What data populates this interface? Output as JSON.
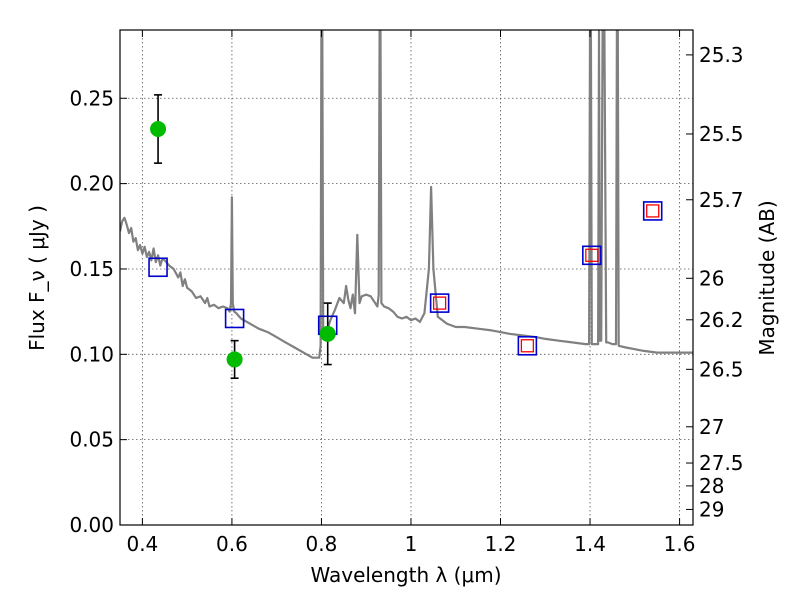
{
  "chart_data": {
    "type": "line",
    "xlabel": "Wavelength  λ (μm)",
    "ylabel_left": "Flux  F_ν  ( μJy )",
    "ylabel_right": "Magnitude (AB)",
    "xlim": [
      0.35,
      1.63
    ],
    "ylim": [
      0.0,
      0.29
    ],
    "grid": true,
    "x_ticks": [
      {
        "value": 0.4,
        "label": "0.4"
      },
      {
        "value": 0.6,
        "label": "0.6"
      },
      {
        "value": 0.8,
        "label": "0.8"
      },
      {
        "value": 1.0,
        "label": "1"
      },
      {
        "value": 1.2,
        "label": "1.2"
      },
      {
        "value": 1.4,
        "label": "1.4"
      },
      {
        "value": 1.6,
        "label": "1.6"
      }
    ],
    "y_ticks": [
      {
        "value": 0.0,
        "label": "0.00"
      },
      {
        "value": 0.05,
        "label": "0.05"
      },
      {
        "value": 0.1,
        "label": "0.10"
      },
      {
        "value": 0.15,
        "label": "0.15"
      },
      {
        "value": 0.2,
        "label": "0.20"
      },
      {
        "value": 0.25,
        "label": "0.25"
      }
    ],
    "right_ticks": [
      {
        "value": 25.3,
        "label": "25.3"
      },
      {
        "value": 25.5,
        "label": "25.5"
      },
      {
        "value": 25.7,
        "label": "25.7"
      },
      {
        "value": 26,
        "label": "26"
      },
      {
        "value": 26.2,
        "label": "26.2"
      },
      {
        "value": 26.5,
        "label": "26.5"
      },
      {
        "value": 27,
        "label": "27"
      },
      {
        "value": 27.5,
        "label": "27.5"
      },
      {
        "value": 28,
        "label": "28"
      },
      {
        "value": 29,
        "label": "29"
      }
    ],
    "colors": {
      "model": "#808080",
      "observed": "#00bb00",
      "errorbar": "#000000",
      "synthetic_box": "#0000cc",
      "model_box": "#ff0000",
      "grid": "#555555"
    },
    "model_sed": [
      [
        0.35,
        0.172
      ],
      [
        0.355,
        0.178
      ],
      [
        0.36,
        0.18
      ],
      [
        0.365,
        0.176
      ],
      [
        0.37,
        0.171
      ],
      [
        0.375,
        0.174
      ],
      [
        0.38,
        0.166
      ],
      [
        0.385,
        0.168
      ],
      [
        0.39,
        0.161
      ],
      [
        0.395,
        0.164
      ],
      [
        0.4,
        0.159
      ],
      [
        0.405,
        0.163
      ],
      [
        0.41,
        0.157
      ],
      [
        0.415,
        0.16
      ],
      [
        0.42,
        0.155
      ],
      [
        0.425,
        0.162
      ],
      [
        0.43,
        0.154
      ],
      [
        0.435,
        0.158
      ],
      [
        0.44,
        0.152
      ],
      [
        0.445,
        0.156
      ],
      [
        0.45,
        0.155
      ],
      [
        0.46,
        0.152
      ],
      [
        0.47,
        0.15
      ],
      [
        0.48,
        0.145
      ],
      [
        0.485,
        0.148
      ],
      [
        0.49,
        0.14
      ],
      [
        0.495,
        0.144
      ],
      [
        0.5,
        0.139
      ],
      [
        0.51,
        0.137
      ],
      [
        0.52,
        0.133
      ],
      [
        0.53,
        0.134
      ],
      [
        0.54,
        0.13
      ],
      [
        0.545,
        0.133
      ],
      [
        0.55,
        0.128
      ],
      [
        0.56,
        0.129
      ],
      [
        0.57,
        0.127
      ],
      [
        0.58,
        0.128
      ],
      [
        0.59,
        0.127
      ],
      [
        0.595,
        0.125
      ],
      [
        0.598,
        0.13
      ],
      [
        0.6,
        0.192
      ],
      [
        0.602,
        0.13
      ],
      [
        0.605,
        0.125
      ],
      [
        0.61,
        0.124
      ],
      [
        0.62,
        0.121
      ],
      [
        0.64,
        0.118
      ],
      [
        0.66,
        0.115
      ],
      [
        0.68,
        0.113
      ],
      [
        0.7,
        0.11
      ],
      [
        0.72,
        0.107
      ],
      [
        0.74,
        0.104
      ],
      [
        0.76,
        0.101
      ],
      [
        0.78,
        0.098
      ],
      [
        0.795,
        0.098
      ],
      [
        0.798,
        0.105
      ],
      [
        0.8,
        0.29
      ],
      [
        0.802,
        0.29
      ],
      [
        0.804,
        0.11
      ],
      [
        0.81,
        0.112
      ],
      [
        0.82,
        0.12
      ],
      [
        0.83,
        0.126
      ],
      [
        0.84,
        0.133
      ],
      [
        0.85,
        0.13
      ],
      [
        0.855,
        0.14
      ],
      [
        0.86,
        0.132
      ],
      [
        0.865,
        0.127
      ],
      [
        0.87,
        0.135
      ],
      [
        0.875,
        0.124
      ],
      [
        0.88,
        0.17
      ],
      [
        0.885,
        0.13
      ],
      [
        0.89,
        0.134
      ],
      [
        0.9,
        0.135
      ],
      [
        0.91,
        0.134
      ],
      [
        0.92,
        0.13
      ],
      [
        0.925,
        0.128
      ],
      [
        0.928,
        0.135
      ],
      [
        0.93,
        0.29
      ],
      [
        0.932,
        0.29
      ],
      [
        0.934,
        0.13
      ],
      [
        0.94,
        0.128
      ],
      [
        0.95,
        0.127
      ],
      [
        0.96,
        0.125
      ],
      [
        0.97,
        0.122
      ],
      [
        0.98,
        0.121
      ],
      [
        0.99,
        0.122
      ],
      [
        1.0,
        0.12
      ],
      [
        1.01,
        0.121
      ],
      [
        1.02,
        0.119
      ],
      [
        1.03,
        0.124
      ],
      [
        1.04,
        0.15
      ],
      [
        1.045,
        0.198
      ],
      [
        1.05,
        0.15
      ],
      [
        1.06,
        0.122
      ],
      [
        1.08,
        0.118
      ],
      [
        1.1,
        0.116
      ],
      [
        1.12,
        0.116
      ],
      [
        1.15,
        0.115
      ],
      [
        1.18,
        0.114
      ],
      [
        1.2,
        0.113
      ],
      [
        1.22,
        0.112
      ],
      [
        1.25,
        0.111
      ],
      [
        1.28,
        0.11
      ],
      [
        1.3,
        0.109
      ],
      [
        1.33,
        0.108
      ],
      [
        1.36,
        0.107
      ],
      [
        1.39,
        0.106
      ],
      [
        1.398,
        0.106
      ],
      [
        1.4,
        0.29
      ],
      [
        1.402,
        0.29
      ],
      [
        1.404,
        0.106
      ],
      [
        1.41,
        0.106
      ],
      [
        1.415,
        0.106
      ],
      [
        1.418,
        0.106
      ],
      [
        1.42,
        0.29
      ],
      [
        1.422,
        0.108
      ],
      [
        1.425,
        0.108
      ],
      [
        1.428,
        0.29
      ],
      [
        1.432,
        0.29
      ],
      [
        1.436,
        0.107
      ],
      [
        1.44,
        0.107
      ],
      [
        1.45,
        0.106
      ],
      [
        1.458,
        0.106
      ],
      [
        1.46,
        0.29
      ],
      [
        1.462,
        0.29
      ],
      [
        1.464,
        0.105
      ],
      [
        1.48,
        0.104
      ],
      [
        1.5,
        0.103
      ],
      [
        1.52,
        0.102
      ],
      [
        1.55,
        0.101
      ],
      [
        1.58,
        0.101
      ],
      [
        1.61,
        0.101
      ],
      [
        1.63,
        0.101
      ]
    ],
    "observed_points": [
      {
        "x": 0.435,
        "y": 0.232,
        "yerr": 0.02
      },
      {
        "x": 0.606,
        "y": 0.097,
        "yerr": 0.011
      },
      {
        "x": 0.814,
        "y": 0.112,
        "yerr": 0.018
      }
    ],
    "synthetic_blue": [
      {
        "x": 0.435,
        "y": 0.151
      },
      {
        "x": 0.606,
        "y": 0.121
      },
      {
        "x": 0.814,
        "y": 0.117
      },
      {
        "x": 1.064,
        "y": 0.13
      },
      {
        "x": 1.26,
        "y": 0.105
      },
      {
        "x": 1.404,
        "y": 0.158
      },
      {
        "x": 1.54,
        "y": 0.184
      }
    ],
    "synthetic_red": [
      {
        "x": 1.064,
        "y": 0.13
      },
      {
        "x": 1.26,
        "y": 0.105
      },
      {
        "x": 1.404,
        "y": 0.158
      },
      {
        "x": 1.54,
        "y": 0.184
      }
    ]
  }
}
